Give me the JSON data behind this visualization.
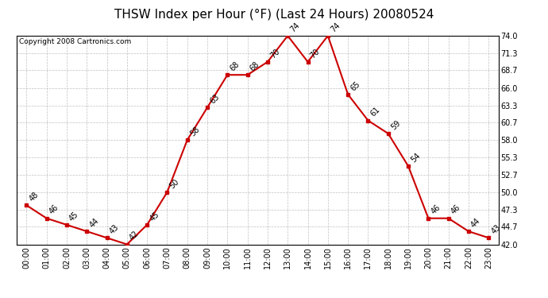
{
  "title": "THSW Index per Hour (°F) (Last 24 Hours) 20080524",
  "copyright": "Copyright 2008 Cartronics.com",
  "hours": [
    "00:00",
    "01:00",
    "02:00",
    "03:00",
    "04:00",
    "05:00",
    "06:00",
    "07:00",
    "08:00",
    "09:00",
    "10:00",
    "11:00",
    "12:00",
    "13:00",
    "14:00",
    "15:00",
    "16:00",
    "17:00",
    "18:00",
    "19:00",
    "20:00",
    "21:00",
    "22:00",
    "23:00"
  ],
  "values": [
    48,
    46,
    45,
    44,
    43,
    42,
    45,
    50,
    58,
    63,
    68,
    68,
    70,
    74,
    70,
    74,
    65,
    61,
    59,
    54,
    46,
    46,
    44,
    43
  ],
  "ylim": [
    42.0,
    74.0
  ],
  "yticks": [
    42.0,
    44.7,
    47.3,
    50.0,
    52.7,
    55.3,
    58.0,
    60.7,
    63.3,
    66.0,
    68.7,
    71.3,
    74.0
  ],
  "line_color": "#cc0000",
  "marker_color": "#cc0000",
  "bg_color": "#ffffff",
  "plot_bg_color": "#ffffff",
  "grid_color": "#b0b0b0",
  "title_fontsize": 11,
  "copyright_fontsize": 6.5,
  "label_fontsize": 7,
  "tick_fontsize": 7
}
